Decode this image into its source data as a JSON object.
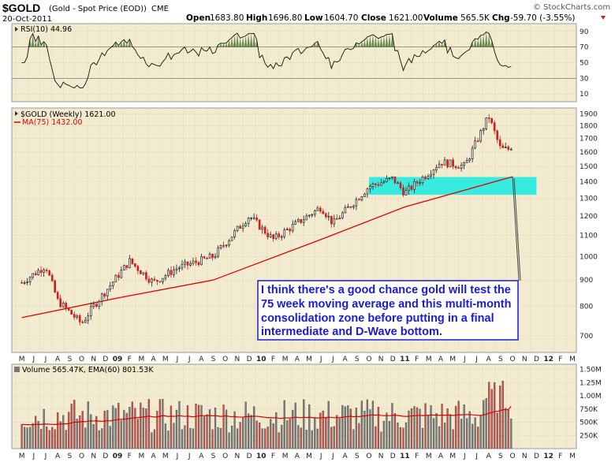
{
  "header": {
    "symbol": "$GOLD",
    "name": "(Gold - Spot Price (EOD))",
    "exchange": "CME",
    "date": "20-Oct-2011",
    "source": "© StockCharts.com",
    "open_label": "Open",
    "open": "1683.80",
    "high_label": "High",
    "high": "1696.80",
    "low_label": "Low",
    "low": "1604.70",
    "close_label": "Close",
    "close": "1621.00",
    "volume_label": "Volume",
    "volume": "565.5K",
    "chg_label": "Chg",
    "chg": "-59.70 (-3.55%)"
  },
  "colors": {
    "panel_bg": "#f3ebcf",
    "grid": "#d8cfb0",
    "up": "#222222",
    "down": "#cc2020",
    "ma": "#e00000",
    "zone": "#22ece0",
    "annotation_text": "#1a1ad8",
    "annotation_border": "#1a1ad8",
    "rsi_fill": "#4f7a3a"
  },
  "rsi_panel": {
    "label": "RSI(10) 44.96",
    "ticks": [
      "90",
      "70",
      "50",
      "30",
      "10"
    ]
  },
  "price_panel": {
    "label": "$GOLD (Weekly) 1621.00",
    "ma_label": "MA(75) 1432.00",
    "ticks": [
      "1900",
      "1800",
      "1700",
      "1600",
      "1500",
      "1400",
      "1300",
      "1200",
      "1100",
      "1000",
      "900",
      "800",
      "700"
    ]
  },
  "volume_panel": {
    "label": "Volume 565.47K, EMA(60) 801.53K",
    "ticks": [
      "1.50M",
      "1.25M",
      "1.00M",
      "750K",
      "500K",
      "250K"
    ]
  },
  "x_axis": {
    "labels": [
      "M",
      "J",
      "J",
      "A",
      "S",
      "O",
      "N",
      "D",
      "09",
      "F",
      "M",
      "A",
      "M",
      "J",
      "J",
      "A",
      "S",
      "O",
      "N",
      "D",
      "10",
      "F",
      "M",
      "A",
      "M",
      "J",
      "J",
      "A",
      "S",
      "O",
      "N",
      "D",
      "11",
      "F",
      "M",
      "A",
      "M",
      "J",
      "J",
      "A",
      "S",
      "O",
      "N",
      "D",
      "12",
      "F",
      "M"
    ],
    "bold_labels": [
      "09",
      "10",
      "11",
      "12"
    ]
  },
  "annotation": {
    "lines": [
      "I think there's a good chance gold will test the",
      "75 week moving average and this multi-month",
      "consolidation zone before putting in a final",
      "intermediate and D-Wave bottom."
    ]
  },
  "chart_data": {
    "type": "candlestick",
    "title": "$GOLD (Gold - Spot Price (EOD)) CME",
    "frequency": "weekly",
    "y_scale": "log",
    "ylim": [
      650,
      1950
    ],
    "last_close": 1621.0,
    "ma75_last": 1432.0,
    "rsi10_last": 44.96,
    "volume_last": 565470,
    "volume_ema60_last": 801530,
    "price_path_anchors": [
      {
        "date": "2008-05",
        "close": 890
      },
      {
        "date": "2008-07",
        "close": 960
      },
      {
        "date": "2008-08",
        "close": 820
      },
      {
        "date": "2008-10",
        "close": 740
      },
      {
        "date": "2008-11",
        "close": 800
      },
      {
        "date": "2009-02",
        "close": 980
      },
      {
        "date": "2009-04",
        "close": 890
      },
      {
        "date": "2009-06",
        "close": 950
      },
      {
        "date": "2009-09",
        "close": 1000
      },
      {
        "date": "2009-12",
        "close": 1200
      },
      {
        "date": "2010-02",
        "close": 1080
      },
      {
        "date": "2010-06",
        "close": 1250
      },
      {
        "date": "2010-07",
        "close": 1160
      },
      {
        "date": "2010-10",
        "close": 1370
      },
      {
        "date": "2010-12",
        "close": 1420
      },
      {
        "date": "2011-01",
        "close": 1330
      },
      {
        "date": "2011-04",
        "close": 1530
      },
      {
        "date": "2011-06",
        "close": 1500
      },
      {
        "date": "2011-08",
        "close": 1880
      },
      {
        "date": "2011-09",
        "close": 1620
      },
      {
        "date": "2011-10",
        "close": 1621
      }
    ],
    "ma75_anchors": [
      {
        "date": "2008-05",
        "value": 760
      },
      {
        "date": "2009-01",
        "value": 830
      },
      {
        "date": "2009-09",
        "value": 900
      },
      {
        "date": "2010-06",
        "value": 1080
      },
      {
        "date": "2011-01",
        "value": 1250
      },
      {
        "date": "2011-10",
        "value": 1432
      }
    ],
    "zone": {
      "from": "2010-10",
      "to": "2011-12",
      "low": 1320,
      "high": 1430
    }
  }
}
